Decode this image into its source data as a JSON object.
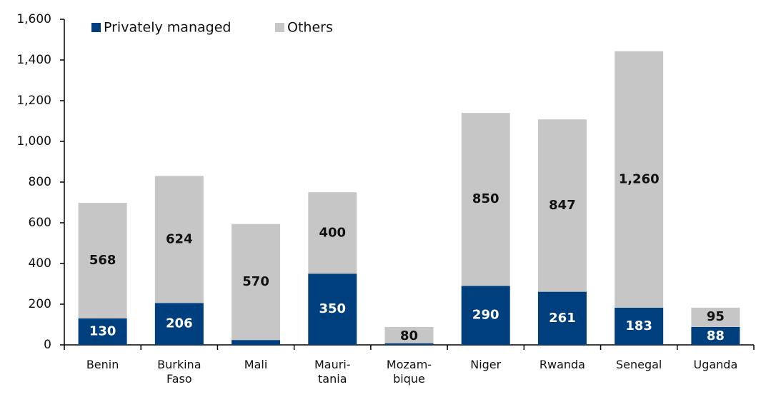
{
  "chart_data": {
    "type": "stacked_bar",
    "categories": [
      "Benin",
      "Burkina\nFaso",
      "Mali",
      "Mauri-\ntania",
      "Mozam-\nbique",
      "Niger",
      "Rwanda",
      "Senegal",
      "Uganda"
    ],
    "series": [
      {
        "name": "Privately managed",
        "color": "#003f7d",
        "values": [
          130,
          206,
          24,
          350,
          8,
          290,
          261,
          183,
          88
        ]
      },
      {
        "name": "Others",
        "color": "#c6c6c6",
        "values": [
          568,
          624,
          570,
          400,
          80,
          850,
          847,
          1260,
          95
        ],
        "value_labels": [
          "568",
          "624",
          "570",
          "400",
          "80",
          "850",
          "847",
          "1,260",
          "95"
        ]
      }
    ],
    "ylim": [
      0,
      1600
    ],
    "yticks": [
      0,
      200,
      400,
      600,
      800,
      {
        "value": 1000,
        "label": "1,000"
      },
      {
        "value": 1200,
        "label": "1,200"
      },
      {
        "value": 1400,
        "label": "1,400"
      },
      {
        "value": 1600,
        "label": "1,600"
      }
    ],
    "legend": "top-left",
    "grid": false
  }
}
